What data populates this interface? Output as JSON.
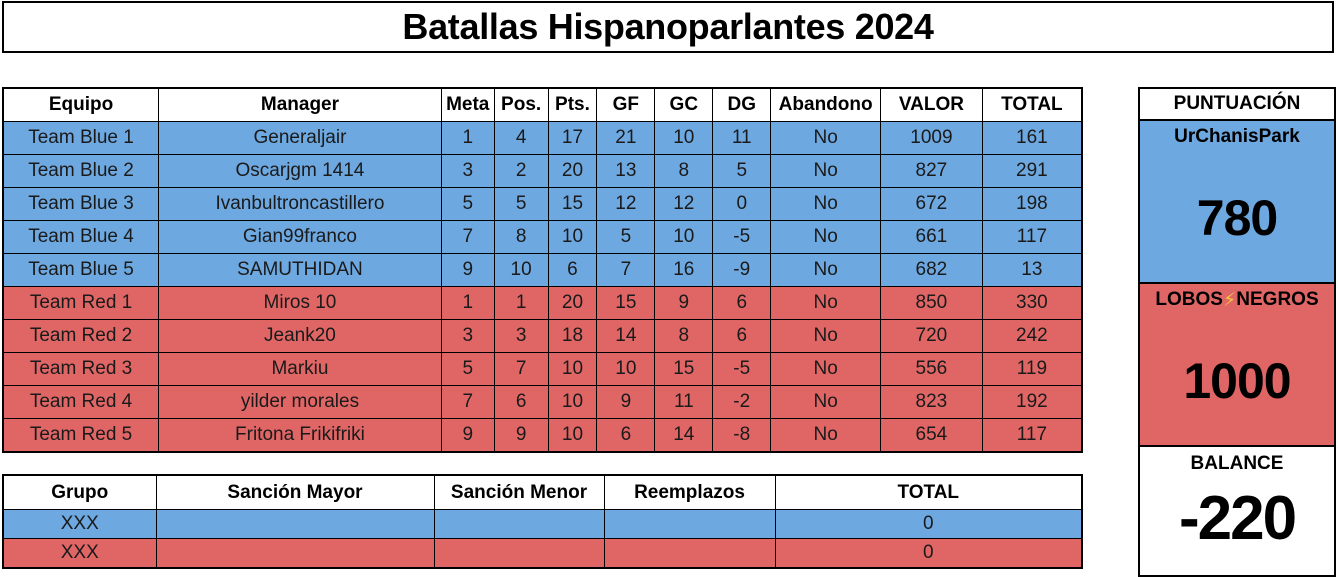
{
  "colors": {
    "blue": "#6ea8e0",
    "red": "#e06666",
    "bolt": "#f5c542"
  },
  "title": "Batallas Hispanoparlantes 2024",
  "main_table": {
    "headers": [
      "Equipo",
      "Manager",
      "Meta",
      "Pos.",
      "Pts.",
      "GF",
      "GC",
      "DG",
      "Abandono",
      "VALOR",
      "TOTAL"
    ],
    "rows": [
      {
        "team": "blue",
        "cells": [
          "Team Blue 1",
          "Generaljair",
          "1",
          "4",
          "17",
          "21",
          "10",
          "11",
          "No",
          "1009",
          "161"
        ]
      },
      {
        "team": "blue",
        "cells": [
          "Team Blue 2",
          "Oscarjgm 1414",
          "3",
          "2",
          "20",
          "13",
          "8",
          "5",
          "No",
          "827",
          "291"
        ]
      },
      {
        "team": "blue",
        "cells": [
          "Team Blue 3",
          "Ivanbultroncastillero",
          "5",
          "5",
          "15",
          "12",
          "12",
          "0",
          "No",
          "672",
          "198"
        ]
      },
      {
        "team": "blue",
        "cells": [
          "Team Blue 4",
          "Gian99franco",
          "7",
          "8",
          "10",
          "5",
          "10",
          "-5",
          "No",
          "661",
          "117"
        ]
      },
      {
        "team": "blue",
        "cells": [
          "Team Blue 5",
          "SAMUTHIDAN",
          "9",
          "10",
          "6",
          "7",
          "16",
          "-9",
          "No",
          "682",
          "13"
        ]
      },
      {
        "team": "red",
        "cells": [
          "Team Red 1",
          "Miros 10",
          "1",
          "1",
          "20",
          "15",
          "9",
          "6",
          "No",
          "850",
          "330"
        ]
      },
      {
        "team": "red",
        "cells": [
          "Team Red 2",
          "Jeank20",
          "3",
          "3",
          "18",
          "14",
          "8",
          "6",
          "No",
          "720",
          "242"
        ]
      },
      {
        "team": "red",
        "cells": [
          "Team Red 3",
          "Markiu",
          "5",
          "7",
          "10",
          "10",
          "15",
          "-5",
          "No",
          "556",
          "119"
        ]
      },
      {
        "team": "red",
        "cells": [
          "Team Red 4",
          "yilder morales",
          "7",
          "6",
          "10",
          "9",
          "11",
          "-2",
          "No",
          "823",
          "192"
        ]
      },
      {
        "team": "red",
        "cells": [
          "Team Red 5",
          "Fritona Frikifriki",
          "9",
          "9",
          "10",
          "6",
          "14",
          "-8",
          "No",
          "654",
          "117"
        ]
      }
    ]
  },
  "sanctions_table": {
    "headers": [
      "Grupo",
      "Sanción Mayor",
      "Sanción Menor",
      "Reemplazos",
      "TOTAL"
    ],
    "rows": [
      {
        "team": "blue",
        "cells": [
          "XXX",
          "",
          "",
          "",
          "0"
        ]
      },
      {
        "team": "red",
        "cells": [
          "XXX",
          "",
          "",
          "",
          "0"
        ]
      }
    ]
  },
  "score_panel": {
    "header": "PUNTUACIÓN",
    "blue_team": {
      "name": "UrChanisPark",
      "score": "780"
    },
    "red_team": {
      "name_left": "LOBOS",
      "bolt": "⚡",
      "name_right": "NEGROS",
      "score": "1000"
    },
    "balance": {
      "label": "BALANCE",
      "value": "-220"
    }
  }
}
